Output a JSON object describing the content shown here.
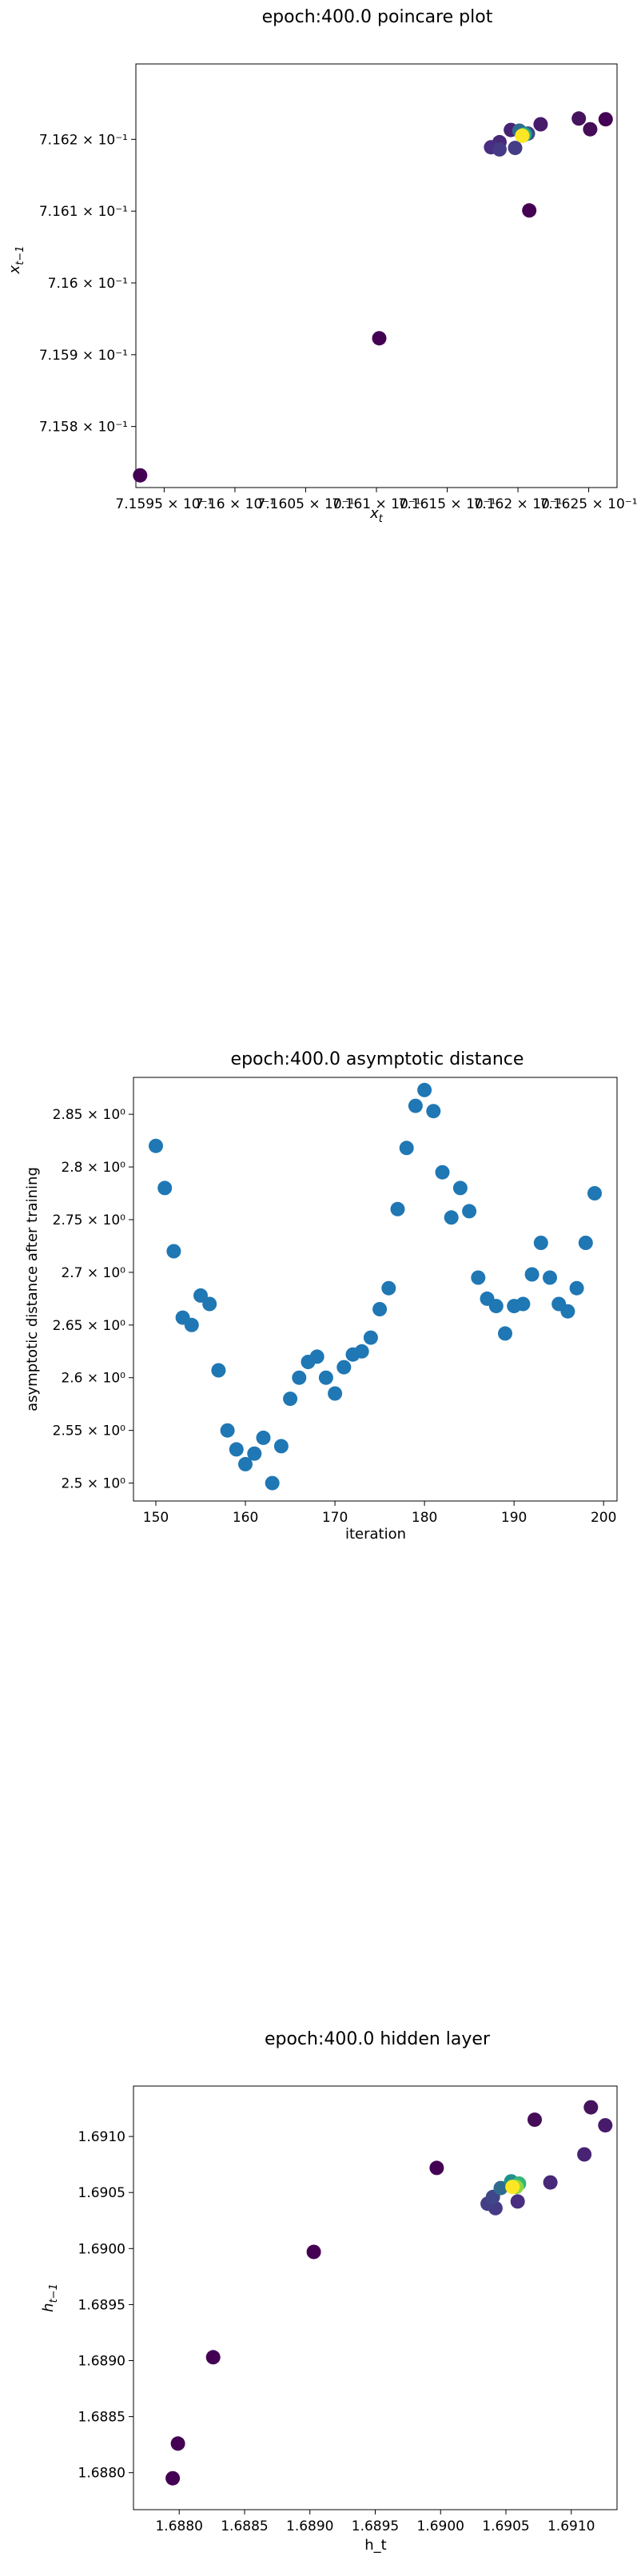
{
  "chart_data": [
    {
      "type": "scatter",
      "title": "epoch:400.0 poincare plot",
      "xlabel": "x_t",
      "ylabel": "x_{t−1}",
      "xlim": [
        0.71593,
        0.71627
      ],
      "ylim": [
        0.715715,
        0.716305
      ],
      "grid": false,
      "colormap": "viridis",
      "x_tick_labels": [
        "7.1595 × 10⁻¹",
        "7.16 × 10⁻¹",
        "7.1605 × 10⁻¹",
        "7.161 × 10⁻¹",
        "7.1615 × 10⁻¹",
        "7.162 × 10⁻¹",
        "7.1625 × 10⁻¹"
      ],
      "x_ticks": [
        0.71595,
        0.716,
        0.71605,
        0.7161,
        0.71615,
        0.7162,
        0.71625
      ],
      "y_tick_labels": [
        "7.158 × 10⁻¹",
        "7.159 × 10⁻¹",
        "7.16 × 10⁻¹",
        "7.161 × 10⁻¹",
        "7.162 × 10⁻¹"
      ],
      "y_ticks": [
        0.7158,
        0.7159,
        0.716,
        0.7161,
        0.7162
      ],
      "points": [
        {
          "x": 0.715933,
          "y": 0.715732,
          "c": "#440154"
        },
        {
          "x": 0.716102,
          "y": 0.715923,
          "c": "#440154"
        },
        {
          "x": 0.716208,
          "y": 0.716101,
          "c": "#440154"
        },
        {
          "x": 0.716262,
          "y": 0.716228,
          "c": "#440154"
        },
        {
          "x": 0.716251,
          "y": 0.716214,
          "c": "#450c58"
        },
        {
          "x": 0.716243,
          "y": 0.716229,
          "c": "#46145e"
        },
        {
          "x": 0.716216,
          "y": 0.716221,
          "c": "#481a6c"
        },
        {
          "x": 0.716195,
          "y": 0.716213,
          "c": "#472374"
        },
        {
          "x": 0.716187,
          "y": 0.716196,
          "c": "#482879"
        },
        {
          "x": 0.716181,
          "y": 0.716189,
          "c": "#482d80"
        },
        {
          "x": 0.716187,
          "y": 0.716186,
          "c": "#453a85"
        },
        {
          "x": 0.716198,
          "y": 0.716188,
          "c": "#433e85"
        },
        {
          "x": 0.716207,
          "y": 0.716208,
          "c": "#3f4788"
        },
        {
          "x": 0.716201,
          "y": 0.716212,
          "c": "#2f6b8e"
        },
        {
          "x": 0.716205,
          "y": 0.716207,
          "c": "#21908c"
        },
        {
          "x": 0.716204,
          "y": 0.716206,
          "c": "#35b779"
        },
        {
          "x": 0.716203,
          "y": 0.716205,
          "c": "#90d743"
        },
        {
          "x": 0.716203,
          "y": 0.716205,
          "c": "#fde725"
        }
      ]
    },
    {
      "type": "scatter",
      "title": "epoch:400.0 asymptotic distance",
      "xlabel": "iteration",
      "ylabel": "asymptotic distance after training",
      "xlim": [
        147.5,
        201.5
      ],
      "ylim": [
        2.483,
        2.885
      ],
      "grid": false,
      "color": "#1f77b4",
      "x_ticks": [
        150,
        160,
        170,
        180,
        190,
        200
      ],
      "x_tick_labels": [
        "150",
        "160",
        "170",
        "180",
        "190",
        "200"
      ],
      "y_ticks": [
        2.5,
        2.55,
        2.6,
        2.65,
        2.7,
        2.75,
        2.8,
        2.85
      ],
      "y_tick_labels": [
        "2.5 × 10⁰",
        "2.55 × 10⁰",
        "2.6 × 10⁰",
        "2.65 × 10⁰",
        "2.7 × 10⁰",
        "2.75 × 10⁰",
        "2.8 × 10⁰",
        "2.85 × 10⁰"
      ],
      "x": [
        150,
        151,
        152,
        153,
        154,
        155,
        156,
        157,
        158,
        159,
        160,
        161,
        162,
        163,
        164,
        165,
        166,
        167,
        168,
        169,
        170,
        171,
        172,
        173,
        174,
        175,
        176,
        177,
        178,
        179,
        180,
        181,
        182,
        183,
        184,
        185,
        186,
        187,
        188,
        189,
        190,
        191,
        192,
        193,
        194,
        195,
        196,
        197,
        198,
        199
      ],
      "y": [
        2.82,
        2.78,
        2.72,
        2.657,
        2.65,
        2.678,
        2.67,
        2.607,
        2.55,
        2.532,
        2.518,
        2.528,
        2.543,
        2.5,
        2.535,
        2.58,
        2.6,
        2.615,
        2.62,
        2.6,
        2.585,
        2.61,
        2.622,
        2.625,
        2.638,
        2.665,
        2.685,
        2.76,
        2.818,
        2.858,
        2.873,
        2.853,
        2.795,
        2.752,
        2.78,
        2.758,
        2.695,
        2.675,
        2.668,
        2.642,
        2.668,
        2.67,
        2.698,
        2.728,
        2.695,
        2.67,
        2.663,
        2.685,
        2.728,
        2.775
      ]
    },
    {
      "type": "scatter",
      "title": "epoch:400.0 hidden layer",
      "xlabel": "h_t",
      "ylabel": "h_{t−1}",
      "xlim": [
        1.68765,
        1.69135
      ],
      "ylim": [
        1.68767,
        1.69145
      ],
      "grid": false,
      "colormap": "viridis",
      "x_ticks": [
        1.688,
        1.6885,
        1.689,
        1.6895,
        1.69,
        1.6905,
        1.691
      ],
      "x_tick_labels": [
        "1.6880",
        "1.6885",
        "1.6890",
        "1.6895",
        "1.6900",
        "1.6905",
        "1.6910"
      ],
      "y_ticks": [
        1.688,
        1.6885,
        1.689,
        1.6895,
        1.69,
        1.6905,
        1.691
      ],
      "y_tick_labels": [
        "1.6880",
        "1.6885",
        "1.6890",
        "1.6895",
        "1.6900",
        "1.6905",
        "1.6910"
      ],
      "points": [
        {
          "x": 1.68795,
          "y": 1.68795,
          "c": "#440154"
        },
        {
          "x": 1.68799,
          "y": 1.68826,
          "c": "#440154"
        },
        {
          "x": 1.68826,
          "y": 1.68903,
          "c": "#440154"
        },
        {
          "x": 1.68903,
          "y": 1.68997,
          "c": "#440154"
        },
        {
          "x": 1.68997,
          "y": 1.69072,
          "c": "#440154"
        },
        {
          "x": 1.69072,
          "y": 1.69115,
          "c": "#450c58"
        },
        {
          "x": 1.69115,
          "y": 1.69126,
          "c": "#46145e"
        },
        {
          "x": 1.69126,
          "y": 1.6911,
          "c": "#481a6c"
        },
        {
          "x": 1.6911,
          "y": 1.69084,
          "c": "#472374"
        },
        {
          "x": 1.69084,
          "y": 1.69059,
          "c": "#482879"
        },
        {
          "x": 1.69059,
          "y": 1.69042,
          "c": "#482d80"
        },
        {
          "x": 1.69042,
          "y": 1.69036,
          "c": "#453a85"
        },
        {
          "x": 1.69036,
          "y": 1.6904,
          "c": "#433e85"
        },
        {
          "x": 1.6904,
          "y": 1.69046,
          "c": "#3f4788"
        },
        {
          "x": 1.69046,
          "y": 1.69054,
          "c": "#2f6b8e"
        },
        {
          "x": 1.69054,
          "y": 1.6906,
          "c": "#21908c"
        },
        {
          "x": 1.6906,
          "y": 1.69058,
          "c": "#35b779"
        },
        {
          "x": 1.69058,
          "y": 1.69055,
          "c": "#90d743"
        },
        {
          "x": 1.69055,
          "y": 1.69055,
          "c": "#fde725"
        }
      ]
    }
  ]
}
